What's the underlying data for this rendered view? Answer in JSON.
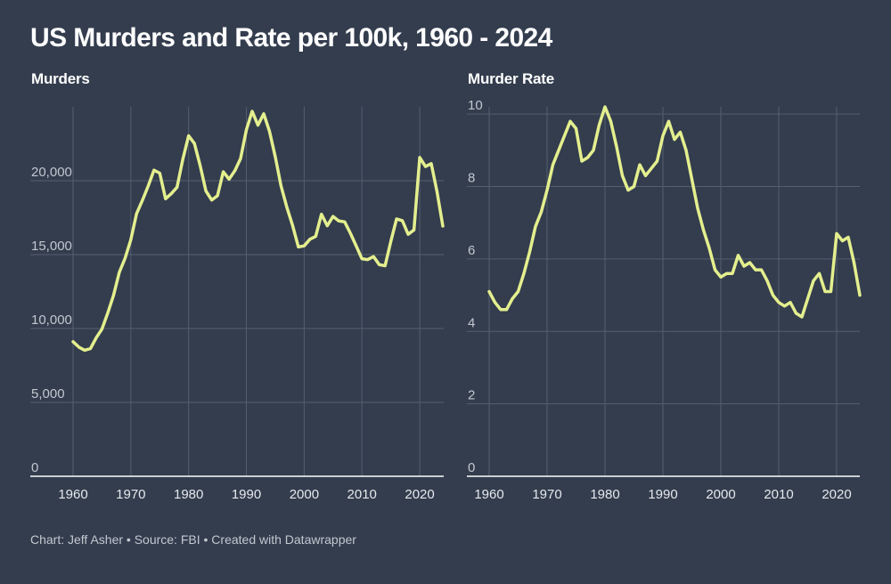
{
  "title": "US Murders and Rate per 100k, 1960 - 2024",
  "footer": "Chart: Jeff Asher • Source: FBI • Created with Datawrapper",
  "colors": {
    "background": "#333d4e",
    "line": "#e4ef8e",
    "grid": "#555e6d",
    "axis": "#ffffff"
  },
  "chart_data": [
    {
      "type": "line",
      "title": "Murders",
      "xlabel": "",
      "ylabel": "",
      "xlim": [
        1960,
        2024
      ],
      "ylim": [
        0,
        25000
      ],
      "yticks": [
        0,
        5000,
        10000,
        15000,
        20000
      ],
      "ytick_labels": [
        "0",
        "5,000",
        "10,000",
        "15,000",
        "20,000"
      ],
      "xticks": [
        1960,
        1970,
        1980,
        1990,
        2000,
        2010,
        2020
      ],
      "xtick_labels": [
        "1960",
        "1970",
        "1980",
        "1990",
        "2000",
        "2010",
        "2020"
      ],
      "x": [
        1960,
        1961,
        1962,
        1963,
        1964,
        1965,
        1966,
        1967,
        1968,
        1969,
        1970,
        1971,
        1972,
        1973,
        1974,
        1975,
        1976,
        1977,
        1978,
        1979,
        1980,
        1981,
        1982,
        1983,
        1984,
        1985,
        1986,
        1987,
        1988,
        1989,
        1990,
        1991,
        1992,
        1993,
        1994,
        1995,
        1996,
        1997,
        1998,
        1999,
        2000,
        2001,
        2002,
        2003,
        2004,
        2005,
        2006,
        2007,
        2008,
        2009,
        2010,
        2011,
        2012,
        2013,
        2014,
        2015,
        2016,
        2017,
        2018,
        2019,
        2020,
        2021,
        2022,
        2023,
        2024
      ],
      "series": [
        {
          "name": "Murders",
          "values": [
            9110,
            8740,
            8530,
            8640,
            9360,
            9960,
            11040,
            12240,
            13800,
            14760,
            16000,
            17780,
            18670,
            19640,
            20710,
            20510,
            18780,
            19120,
            19560,
            21460,
            23040,
            22520,
            21010,
            19310,
            18690,
            18980,
            20610,
            20100,
            20680,
            21500,
            23440,
            24700,
            23760,
            24530,
            23330,
            21610,
            19650,
            18210,
            16970,
            15520,
            15590,
            16040,
            16230,
            17732,
            16951,
            17586,
            17280,
            17218,
            16440,
            15599,
            14722,
            14661,
            14866,
            14319,
            14249,
            15883,
            17413,
            17294,
            16374,
            16669,
            21570,
            20958,
            21156,
            19252,
            16935
          ]
        }
      ]
    },
    {
      "type": "line",
      "title": "Murder Rate",
      "xlabel": "",
      "ylabel": "",
      "xlim": [
        1960,
        2024
      ],
      "ylim": [
        0,
        10.2
      ],
      "yticks": [
        0,
        2,
        4,
        6,
        8,
        10
      ],
      "ytick_labels": [
        "0",
        "2",
        "4",
        "6",
        "8",
        "10"
      ],
      "xticks": [
        1960,
        1970,
        1980,
        1990,
        2000,
        2010,
        2020
      ],
      "xtick_labels": [
        "1960",
        "1970",
        "1980",
        "1990",
        "2000",
        "2010",
        "2020"
      ],
      "x": [
        1960,
        1961,
        1962,
        1963,
        1964,
        1965,
        1966,
        1967,
        1968,
        1969,
        1970,
        1971,
        1972,
        1973,
        1974,
        1975,
        1976,
        1977,
        1978,
        1979,
        1980,
        1981,
        1982,
        1983,
        1984,
        1985,
        1986,
        1987,
        1988,
        1989,
        1990,
        1991,
        1992,
        1993,
        1994,
        1995,
        1996,
        1997,
        1998,
        1999,
        2000,
        2001,
        2002,
        2003,
        2004,
        2005,
        2006,
        2007,
        2008,
        2009,
        2010,
        2011,
        2012,
        2013,
        2014,
        2015,
        2016,
        2017,
        2018,
        2019,
        2020,
        2021,
        2022,
        2023,
        2024
      ],
      "series": [
        {
          "name": "Murder Rate",
          "values": [
            5.1,
            4.8,
            4.6,
            4.6,
            4.9,
            5.1,
            5.6,
            6.2,
            6.9,
            7.3,
            7.9,
            8.6,
            9.0,
            9.4,
            9.8,
            9.6,
            8.7,
            8.8,
            9.0,
            9.7,
            10.2,
            9.8,
            9.1,
            8.3,
            7.9,
            8.0,
            8.6,
            8.3,
            8.5,
            8.7,
            9.4,
            9.8,
            9.3,
            9.5,
            9.0,
            8.2,
            7.4,
            6.8,
            6.3,
            5.7,
            5.5,
            5.6,
            5.6,
            6.1,
            5.8,
            5.9,
            5.7,
            5.7,
            5.4,
            5.0,
            4.8,
            4.7,
            4.8,
            4.5,
            4.4,
            4.9,
            5.4,
            5.6,
            5.1,
            5.1,
            6.7,
            6.5,
            6.6,
            5.9,
            5.0
          ]
        }
      ]
    }
  ]
}
